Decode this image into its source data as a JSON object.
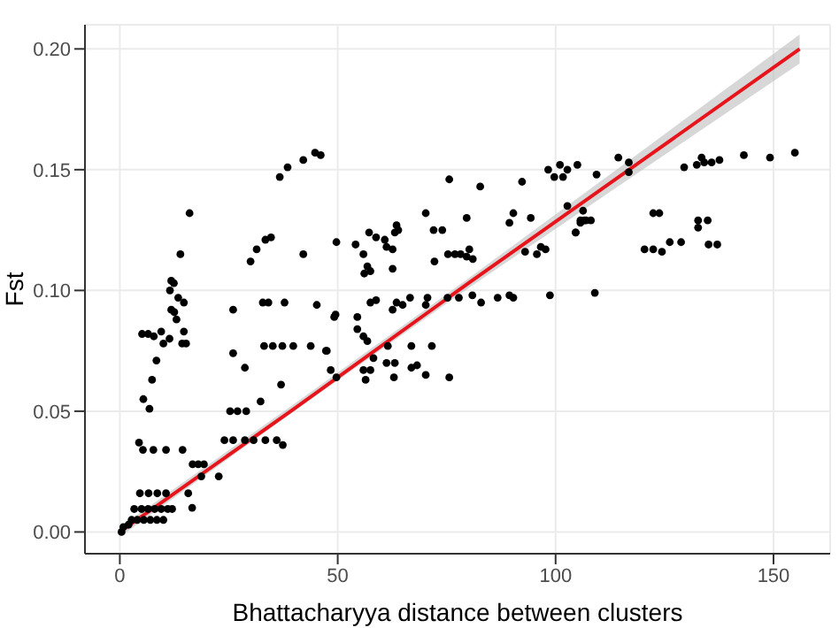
{
  "chart_data": {
    "type": "scatter",
    "xlabel": "Bhattacharyya distance between clusters",
    "ylabel": "Fst",
    "xlim": [
      -8,
      163
    ],
    "ylim": [
      -0.009,
      0.21
    ],
    "xticks": [
      0,
      50,
      100,
      150
    ],
    "yticks": [
      {
        "value": 0,
        "label": "0.00"
      },
      {
        "value": 0.05,
        "label": "0.05"
      },
      {
        "value": 0.1,
        "label": "0.10"
      },
      {
        "value": 0.15,
        "label": "0.15"
      },
      {
        "value": 0.2,
        "label": "0.20"
      }
    ],
    "grid": true,
    "marker": "circle",
    "series": [
      {
        "color": "#000000",
        "x": [
          16.0,
          13.9,
          11.8,
          12.4,
          11.5,
          13.4,
          14.7,
          11.8,
          12.5,
          13.0,
          14.7,
          5.1,
          6.5,
          7.8,
          9.5,
          11.4,
          10.0,
          14.3,
          15.2,
          8.4,
          7.4,
          5.4,
          6.8,
          4.4,
          5.3,
          7.7,
          10.6,
          14.4,
          16.7,
          18.0,
          19.3,
          18.7,
          22.7,
          15.7,
          16.6,
          4.6,
          6.6,
          8.6,
          10.6,
          3.3,
          5.0,
          6.5,
          8.0,
          9.5,
          11.0,
          12.0,
          2.7,
          4.0,
          5.5,
          7.0,
          8.5,
          10.0,
          0.8,
          2.0,
          0.4,
          26.0,
          26.0,
          28.7,
          25.3,
          27.0,
          29.0,
          32.3,
          24.0,
          26.0,
          28.7,
          30.7,
          33.4,
          36.0,
          37.4,
          36.7,
          38.5,
          42.1,
          44.8,
          46.1,
          30.0,
          31.4,
          33.4,
          34.7,
          42.1,
          49.7,
          32.8,
          34.1,
          37.8,
          45.2,
          49.5,
          33.1,
          35.1,
          37.3,
          39.8,
          43.8,
          47.3,
          37.0,
          54.1,
          55.9,
          57.2,
          58.8,
          60.8,
          61.2,
          62.6,
          63.1,
          63.5,
          63.9,
          56.8,
          57.5,
          56.1,
          62.6,
          70.2,
          72.0,
          74.0,
          75.6,
          82.7,
          75.3,
          76.9,
          78.2,
          79.6,
          80.2,
          81.0,
          72.2,
          79.6,
          92.3,
          94.3,
          89.4,
          90.3,
          98.3,
          99.7,
          101.0,
          101.7,
          102.7,
          105.0,
          93.0,
          95.7,
          96.6,
          97.7,
          102.7,
          104.6,
          105.7,
          106.6,
          49.2,
          54.5,
          57.5,
          58.8,
          62.6,
          63.5,
          64.9,
          66.6,
          70.6,
          70.2,
          75.2,
          77.8,
          80.9,
          82.9,
          86.7,
          89.4,
          90.3,
          98.7,
          47.5,
          54.5,
          55.9,
          56.8,
          61.5,
          66.9,
          71.6,
          58.2,
          61.2,
          63.1,
          55.9,
          56.4,
          57.5,
          66.9,
          68.2,
          70.2,
          75.6,
          62.9,
          48.4,
          49.7,
          109.4,
          114.4,
          116.8,
          116.8,
          106.3,
          105.7,
          107.0,
          108.1,
          104.6,
          109.0,
          129.5,
          132.4,
          133.5,
          134.1,
          135.8,
          137.6,
          143.2,
          149.2,
          154.9,
          122.4,
          123.8,
          132.7,
          134.9,
          132.7,
          120.4,
          122.4,
          124.4,
          126.2,
          128.8,
          135.1,
          137.1
        ],
        "values": [
          0.132,
          0.115,
          0.104,
          0.103,
          0.1,
          0.097,
          0.095,
          0.092,
          0.091,
          0.088,
          0.083,
          0.082,
          0.082,
          0.081,
          0.083,
          0.08,
          0.078,
          0.078,
          0.078,
          0.071,
          0.063,
          0.055,
          0.051,
          0.037,
          0.034,
          0.034,
          0.034,
          0.034,
          0.028,
          0.028,
          0.028,
          0.023,
          0.023,
          0.016,
          0.01,
          0.016,
          0.016,
          0.016,
          0.016,
          0.0095,
          0.0095,
          0.0095,
          0.0095,
          0.0095,
          0.0095,
          0.0095,
          0.005,
          0.005,
          0.005,
          0.005,
          0.005,
          0.005,
          0.002,
          0.003,
          0.0,
          0.092,
          0.074,
          0.068,
          0.05,
          0.05,
          0.05,
          0.054,
          0.038,
          0.038,
          0.038,
          0.038,
          0.038,
          0.038,
          0.036,
          0.147,
          0.151,
          0.154,
          0.157,
          0.156,
          0.112,
          0.117,
          0.121,
          0.122,
          0.115,
          0.12,
          0.095,
          0.095,
          0.095,
          0.094,
          0.09,
          0.077,
          0.077,
          0.077,
          0.077,
          0.077,
          0.075,
          0.061,
          0.119,
          0.115,
          0.124,
          0.122,
          0.121,
          0.118,
          0.117,
          0.124,
          0.127,
          0.125,
          0.11,
          0.108,
          0.107,
          0.109,
          0.132,
          0.125,
          0.125,
          0.146,
          0.143,
          0.115,
          0.115,
          0.115,
          0.114,
          0.117,
          0.113,
          0.112,
          0.13,
          0.145,
          0.13,
          0.128,
          0.132,
          0.15,
          0.147,
          0.152,
          0.147,
          0.15,
          0.152,
          0.116,
          0.115,
          0.118,
          0.117,
          0.135,
          0.124,
          0.128,
          0.129,
          0.089,
          0.089,
          0.095,
          0.096,
          0.092,
          0.095,
          0.094,
          0.097,
          0.097,
          0.094,
          0.097,
          0.097,
          0.098,
          0.095,
          0.097,
          0.098,
          0.097,
          0.098,
          0.075,
          0.084,
          0.081,
          0.079,
          0.077,
          0.077,
          0.077,
          0.072,
          0.07,
          0.07,
          0.067,
          0.063,
          0.067,
          0.068,
          0.069,
          0.065,
          0.064,
          0.064,
          0.067,
          0.064,
          0.148,
          0.155,
          0.153,
          0.149,
          0.133,
          0.129,
          0.129,
          0.129,
          0.124,
          0.099,
          0.151,
          0.152,
          0.155,
          0.153,
          0.153,
          0.154,
          0.156,
          0.155,
          0.157,
          0.132,
          0.132,
          0.129,
          0.129,
          0.126,
          0.117,
          0.117,
          0.116,
          0.12,
          0.12,
          0.119,
          0.119
        ]
      },
      {
        "type": "line",
        "color": "#e8141c",
        "marker": "none",
        "line_style": "solid",
        "x": [
          0,
          40,
          80,
          120,
          156
        ],
        "values": [
          0,
          0.051,
          0.103,
          0.154,
          0.2
        ],
        "lower": [
          -0.002,
          0.05,
          0.101,
          0.15,
          0.194
        ],
        "upper": [
          0.002,
          0.053,
          0.105,
          0.158,
          0.206
        ]
      }
    ]
  }
}
